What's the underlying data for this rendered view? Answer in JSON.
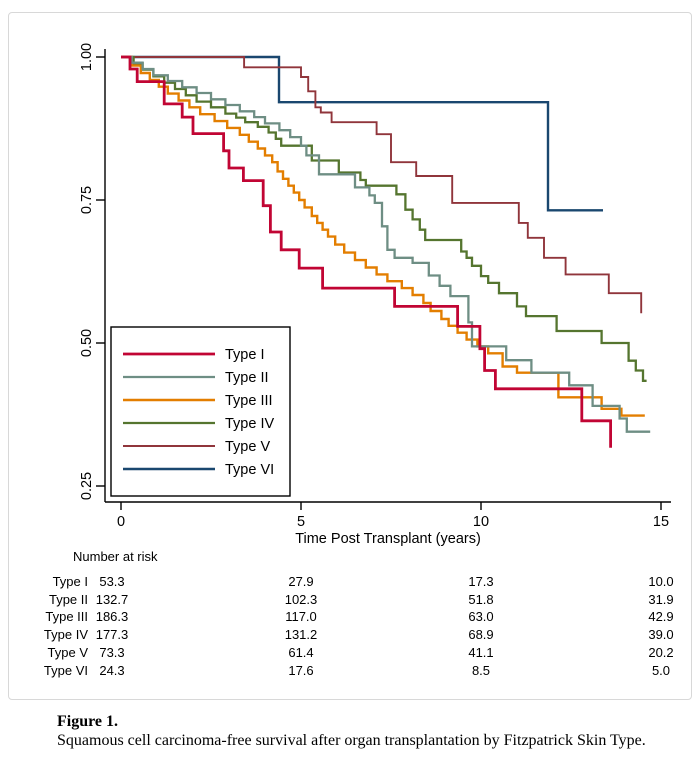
{
  "figure": {
    "caption_label": "Figure 1.",
    "caption_text": "Squamous cell carcinoma-free survival after organ transplantation by Fitzpatrick Skin Type."
  },
  "chart_data": {
    "type": "line",
    "subtype": "kaplan-meier-step",
    "xlabel": "Time Post Transplant (years)",
    "ylabel": "",
    "xlim": [
      0,
      15
    ],
    "ylim": [
      0.25,
      1.0
    ],
    "x_ticks": [
      0,
      5,
      10,
      15
    ],
    "y_ticks": [
      1.0,
      0.75,
      0.5,
      0.25
    ],
    "y_tick_labels": [
      "1.00",
      "0.75",
      "0.50",
      "0.25"
    ],
    "grid": false,
    "legend_position": "inside-lower-left",
    "axis_color": "#000000",
    "series": [
      {
        "name": "Type I",
        "color": "#C10534",
        "stroke_width": 2.8,
        "end": 13.6,
        "points": [
          [
            0,
            1.0
          ],
          [
            0.25,
            0.979
          ],
          [
            0.45,
            0.957
          ],
          [
            1.2,
            0.918
          ],
          [
            1.7,
            0.895
          ],
          [
            2.0,
            0.866
          ],
          [
            2.85,
            0.836
          ],
          [
            3.0,
            0.806
          ],
          [
            3.4,
            0.784
          ],
          [
            3.95,
            0.74
          ],
          [
            4.15,
            0.694
          ],
          [
            4.45,
            0.663
          ],
          [
            4.95,
            0.631
          ],
          [
            5.6,
            0.596
          ],
          [
            7.6,
            0.564
          ],
          [
            9.35,
            0.529
          ],
          [
            9.97,
            0.49
          ],
          [
            10.1,
            0.452
          ],
          [
            10.4,
            0.42
          ],
          [
            12.8,
            0.364
          ],
          [
            13.6,
            0.317
          ]
        ]
      },
      {
        "name": "Type II",
        "color": "#6E8E84",
        "stroke_width": 2.3,
        "end": 14.7,
        "points": [
          [
            0,
            1.0
          ],
          [
            0.3,
            0.99
          ],
          [
            0.6,
            0.979
          ],
          [
            0.9,
            0.968
          ],
          [
            1.3,
            0.958
          ],
          [
            1.7,
            0.947
          ],
          [
            2.1,
            0.937
          ],
          [
            2.5,
            0.926
          ],
          [
            2.9,
            0.916
          ],
          [
            3.3,
            0.905
          ],
          [
            3.7,
            0.895
          ],
          [
            4.0,
            0.884
          ],
          [
            4.4,
            0.872
          ],
          [
            4.7,
            0.86
          ],
          [
            5.0,
            0.845
          ],
          [
            5.15,
            0.828
          ],
          [
            5.5,
            0.795
          ],
          [
            6.5,
            0.772
          ],
          [
            6.9,
            0.758
          ],
          [
            7.05,
            0.745
          ],
          [
            7.25,
            0.704
          ],
          [
            7.4,
            0.663
          ],
          [
            7.6,
            0.649
          ],
          [
            8.1,
            0.64
          ],
          [
            8.55,
            0.618
          ],
          [
            8.85,
            0.6
          ],
          [
            9.15,
            0.582
          ],
          [
            9.65,
            0.536
          ],
          [
            9.75,
            0.494
          ],
          [
            10.7,
            0.47
          ],
          [
            11.4,
            0.448
          ],
          [
            12.45,
            0.426
          ],
          [
            13.1,
            0.39
          ],
          [
            13.85,
            0.368
          ],
          [
            14.05,
            0.345
          ]
        ]
      },
      {
        "name": "Type III",
        "color": "#E37E00",
        "stroke_width": 2.4,
        "end": 14.55,
        "points": [
          [
            0,
            1.0
          ],
          [
            0.3,
            0.985
          ],
          [
            0.55,
            0.972
          ],
          [
            0.8,
            0.96
          ],
          [
            1.05,
            0.948
          ],
          [
            1.3,
            0.936
          ],
          [
            1.6,
            0.924
          ],
          [
            1.9,
            0.912
          ],
          [
            2.2,
            0.9
          ],
          [
            2.6,
            0.888
          ],
          [
            2.95,
            0.876
          ],
          [
            3.3,
            0.864
          ],
          [
            3.55,
            0.852
          ],
          [
            3.8,
            0.84
          ],
          [
            4.0,
            0.828
          ],
          [
            4.2,
            0.816
          ],
          [
            4.35,
            0.8
          ],
          [
            4.5,
            0.787
          ],
          [
            4.65,
            0.775
          ],
          [
            4.8,
            0.763
          ],
          [
            4.95,
            0.75
          ],
          [
            5.1,
            0.737
          ],
          [
            5.3,
            0.722
          ],
          [
            5.45,
            0.71
          ],
          [
            5.6,
            0.698
          ],
          [
            5.75,
            0.686
          ],
          [
            5.95,
            0.672
          ],
          [
            6.2,
            0.658
          ],
          [
            6.5,
            0.645
          ],
          [
            6.8,
            0.632
          ],
          [
            7.1,
            0.62
          ],
          [
            7.4,
            0.608
          ],
          [
            7.8,
            0.596
          ],
          [
            8.1,
            0.584
          ],
          [
            8.4,
            0.57
          ],
          [
            8.6,
            0.556
          ],
          [
            8.9,
            0.542
          ],
          [
            9.1,
            0.53
          ],
          [
            9.35,
            0.518
          ],
          [
            9.6,
            0.506
          ],
          [
            9.9,
            0.494
          ],
          [
            10.2,
            0.482
          ],
          [
            10.6,
            0.459
          ],
          [
            11.0,
            0.448
          ],
          [
            12.15,
            0.405
          ],
          [
            13.35,
            0.385
          ],
          [
            13.9,
            0.373
          ]
        ]
      },
      {
        "name": "Type IV",
        "color": "#55752F",
        "stroke_width": 2.3,
        "end": 14.6,
        "points": [
          [
            0,
            1.0
          ],
          [
            0.35,
            0.989
          ],
          [
            0.6,
            0.978
          ],
          [
            0.9,
            0.966
          ],
          [
            1.2,
            0.955
          ],
          [
            1.5,
            0.944
          ],
          [
            1.8,
            0.933
          ],
          [
            2.1,
            0.922
          ],
          [
            2.5,
            0.912
          ],
          [
            2.9,
            0.901
          ],
          [
            3.2,
            0.894
          ],
          [
            3.45,
            0.886
          ],
          [
            3.8,
            0.878
          ],
          [
            4.1,
            0.868
          ],
          [
            4.3,
            0.857
          ],
          [
            4.45,
            0.845
          ],
          [
            5.3,
            0.819
          ],
          [
            6.05,
            0.798
          ],
          [
            6.65,
            0.785
          ],
          [
            6.8,
            0.775
          ],
          [
            7.65,
            0.76
          ],
          [
            7.9,
            0.733
          ],
          [
            8.1,
            0.716
          ],
          [
            8.3,
            0.698
          ],
          [
            8.45,
            0.68
          ],
          [
            9.45,
            0.66
          ],
          [
            9.6,
            0.649
          ],
          [
            9.75,
            0.635
          ],
          [
            10.0,
            0.617
          ],
          [
            10.2,
            0.605
          ],
          [
            10.5,
            0.587
          ],
          [
            11.0,
            0.564
          ],
          [
            11.25,
            0.547
          ],
          [
            12.1,
            0.521
          ],
          [
            13.35,
            0.5
          ],
          [
            14.1,
            0.469
          ],
          [
            14.3,
            0.452
          ],
          [
            14.5,
            0.434
          ]
        ]
      },
      {
        "name": "Type V",
        "color": "#90353B",
        "stroke_width": 1.9,
        "end": 14.45,
        "points": [
          [
            0,
            1.0
          ],
          [
            3.42,
            0.982
          ],
          [
            5.0,
            0.965
          ],
          [
            5.2,
            0.94
          ],
          [
            5.4,
            0.912
          ],
          [
            5.55,
            0.903
          ],
          [
            5.85,
            0.886
          ],
          [
            7.1,
            0.865
          ],
          [
            7.5,
            0.816
          ],
          [
            8.2,
            0.792
          ],
          [
            9.2,
            0.745
          ],
          [
            11.05,
            0.71
          ],
          [
            11.3,
            0.684
          ],
          [
            11.75,
            0.649
          ],
          [
            12.35,
            0.62
          ],
          [
            13.55,
            0.587
          ],
          [
            14.45,
            0.552
          ]
        ]
      },
      {
        "name": "Type VI",
        "color": "#1A476F",
        "stroke_width": 2.4,
        "end": 13.39,
        "points": [
          [
            0,
            1.0
          ],
          [
            4.39,
            0.921
          ],
          [
            11.86,
            0.732
          ]
        ]
      }
    ]
  },
  "risk_table": {
    "title": "Number at risk",
    "time_points": [
      0,
      5,
      10,
      15
    ],
    "rows": [
      {
        "label": "Type I",
        "values": [
          "53.3",
          "27.9",
          "17.3",
          "10.0"
        ]
      },
      {
        "label": "Type II",
        "values": [
          "132.7",
          "102.3",
          "51.8",
          "31.9"
        ]
      },
      {
        "label": "Type III",
        "values": [
          "186.3",
          "117.0",
          "63.0",
          "42.9"
        ]
      },
      {
        "label": "Type IV",
        "values": [
          "177.3",
          "131.2",
          "68.9",
          "39.0"
        ]
      },
      {
        "label": "Type V",
        "values": [
          "73.3",
          "61.4",
          "41.1",
          "20.2"
        ]
      },
      {
        "label": "Type VI",
        "values": [
          "24.3",
          "17.6",
          "8.5",
          "5.0"
        ]
      }
    ]
  }
}
